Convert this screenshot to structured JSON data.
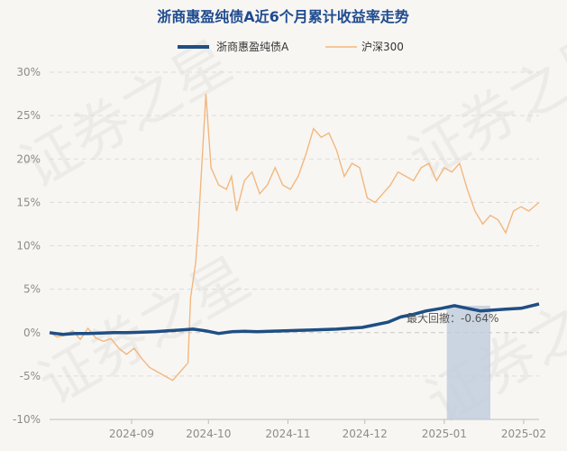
{
  "chart_data": {
    "type": "line",
    "title": "浙商惠盈纯债A近6个月累计收益率走势",
    "x_ticks": [
      "2024-09",
      "2024-10",
      "2024-11",
      "2024-12",
      "2025-01",
      "2025-02"
    ],
    "y_ticks": [
      "30%",
      "25%",
      "20%",
      "15%",
      "10%",
      "5%",
      "0%",
      "-5%",
      "-10%"
    ],
    "ylim": [
      -10,
      30
    ],
    "xlim": [
      "2024-07-31",
      "2025-02-07"
    ],
    "grid": "horizontal dashed",
    "legend_position": "top",
    "colors": {
      "fund": "#1f4e84",
      "index": "#f2b77e",
      "drawdown_fill": "#bccadb",
      "title": "#1f4b8f"
    },
    "series": [
      {
        "name": "浙商惠盈纯债A",
        "x": [
          "2024-07-31",
          "2024-08-05",
          "2024-08-10",
          "2024-08-15",
          "2024-08-20",
          "2024-08-25",
          "2024-08-31",
          "2024-09-05",
          "2024-09-10",
          "2024-09-15",
          "2024-09-20",
          "2024-09-25",
          "2024-09-30",
          "2024-10-05",
          "2024-10-10",
          "2024-10-15",
          "2024-10-20",
          "2024-10-25",
          "2024-10-31",
          "2024-11-05",
          "2024-11-10",
          "2024-11-15",
          "2024-11-20",
          "2024-11-25",
          "2024-11-30",
          "2024-12-05",
          "2024-12-10",
          "2024-12-15",
          "2024-12-20",
          "2024-12-25",
          "2024-12-31",
          "2025-01-05",
          "2025-01-10",
          "2025-01-15",
          "2025-01-20",
          "2025-01-25",
          "2025-01-31",
          "2025-02-07"
        ],
        "values": [
          0.0,
          -0.2,
          -0.1,
          -0.1,
          -0.05,
          0.0,
          0.0,
          0.05,
          0.1,
          0.2,
          0.3,
          0.4,
          0.2,
          -0.1,
          0.1,
          0.15,
          0.1,
          0.15,
          0.2,
          0.25,
          0.3,
          0.35,
          0.4,
          0.5,
          0.6,
          0.9,
          1.2,
          1.8,
          2.1,
          2.5,
          2.8,
          3.1,
          2.8,
          2.5,
          2.6,
          2.7,
          2.8,
          3.3
        ]
      },
      {
        "name": "沪深300",
        "x": [
          "2024-07-31",
          "2024-08-03",
          "2024-08-06",
          "2024-08-09",
          "2024-08-12",
          "2024-08-15",
          "2024-08-18",
          "2024-08-21",
          "2024-08-24",
          "2024-08-27",
          "2024-08-30",
          "2024-09-02",
          "2024-09-05",
          "2024-09-08",
          "2024-09-11",
          "2024-09-14",
          "2024-09-17",
          "2024-09-20",
          "2024-09-23",
          "2024-09-24",
          "2024-09-26",
          "2024-09-27",
          "2024-09-30",
          "2024-10-02",
          "2024-10-05",
          "2024-10-08",
          "2024-10-10",
          "2024-10-12",
          "2024-10-15",
          "2024-10-18",
          "2024-10-21",
          "2024-10-24",
          "2024-10-27",
          "2024-10-30",
          "2024-11-02",
          "2024-11-05",
          "2024-11-08",
          "2024-11-11",
          "2024-11-14",
          "2024-11-17",
          "2024-11-20",
          "2024-11-23",
          "2024-11-26",
          "2024-11-29",
          "2024-12-02",
          "2024-12-05",
          "2024-12-08",
          "2024-12-11",
          "2024-12-14",
          "2024-12-17",
          "2024-12-20",
          "2024-12-23",
          "2024-12-26",
          "2024-12-29",
          "2025-01-01",
          "2025-01-04",
          "2025-01-07",
          "2025-01-10",
          "2025-01-13",
          "2025-01-16",
          "2025-01-19",
          "2025-01-22",
          "2025-01-25",
          "2025-01-28",
          "2025-01-31",
          "2025-02-03",
          "2025-02-07"
        ],
        "values": [
          0,
          -0.5,
          -0.3,
          0.2,
          -0.8,
          0.5,
          -0.6,
          -1.0,
          -0.7,
          -1.8,
          -2.5,
          -1.8,
          -3.0,
          -4.0,
          -4.5,
          -5.0,
          -5.5,
          -4.5,
          -3.5,
          4.0,
          8.0,
          12.0,
          27.5,
          19.0,
          17.0,
          16.5,
          18.0,
          14.0,
          17.5,
          18.5,
          16.0,
          17.0,
          19.0,
          17.0,
          16.5,
          18.0,
          20.5,
          23.5,
          22.5,
          23.0,
          21.0,
          18.0,
          19.5,
          19.0,
          15.5,
          15.0,
          16.0,
          17.0,
          18.5,
          18.0,
          17.5,
          19.0,
          19.5,
          17.5,
          19.0,
          18.5,
          19.5,
          16.5,
          14.0,
          12.5,
          13.5,
          13.0,
          11.5,
          14.0,
          14.5,
          14.0,
          15.0
        ]
      }
    ],
    "annotation": {
      "label": "最大回撤：-0.64%",
      "shade_start": "2025-01-02",
      "shade_end": "2025-01-19"
    },
    "watermark": "证券之星"
  }
}
